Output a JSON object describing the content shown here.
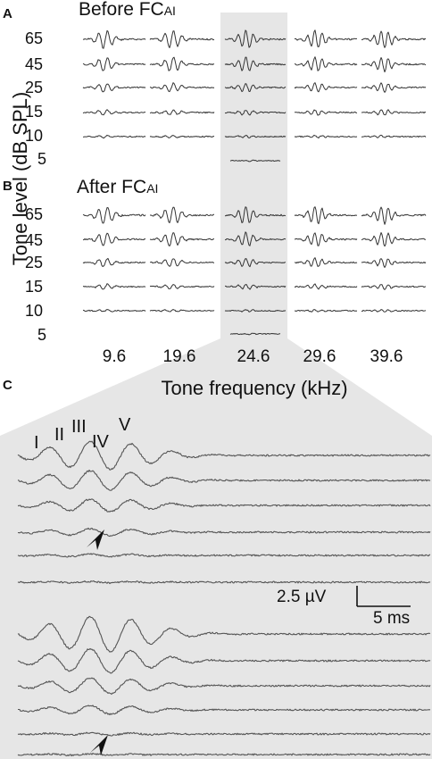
{
  "panels": {
    "a": {
      "letter": "A",
      "title_main": "Before FC",
      "title_sub": "AI"
    },
    "b": {
      "letter": "B",
      "title_main": "After FC",
      "title_sub": "AI"
    },
    "c": {
      "letter": "C"
    }
  },
  "y_axis_title": "Tone level (dB SPL)",
  "x_axis_title": "Tone frequency (kHz)",
  "tone_levels": [
    "65",
    "45",
    "25",
    "15",
    "10",
    "5"
  ],
  "tone_frequencies": [
    "9.6",
    "19.6",
    "24.6",
    "29.6",
    "39.6"
  ],
  "highlighted_frequency": "24.6",
  "wave_labels": [
    "I",
    "II",
    "III",
    "IV",
    "V"
  ],
  "scale_bar": {
    "amplitude": "2.5 µV",
    "time": "5 ms"
  },
  "colors": {
    "highlight": "#e6e6e6",
    "trace": "#333333",
    "text": "#111111"
  },
  "icons": [
    "arrowhead-icon"
  ]
}
